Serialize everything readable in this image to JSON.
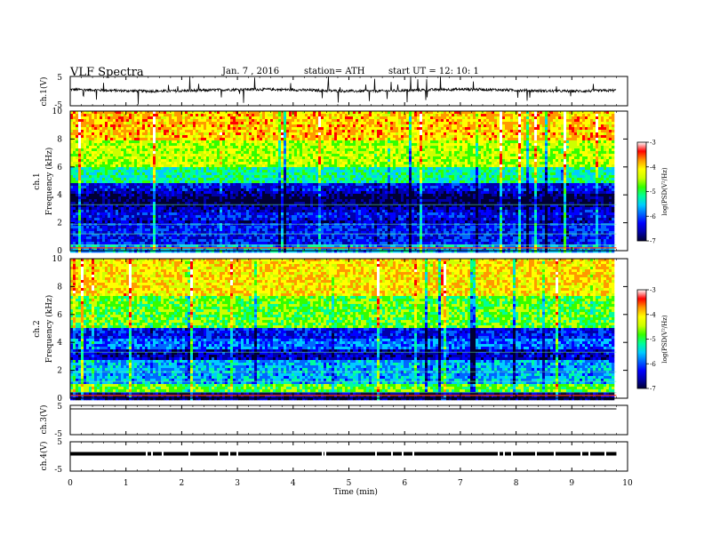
{
  "header": {
    "title": "VLF Spectra",
    "date": "Jan. 7 , 2016",
    "station": "station= ATH",
    "start": "start UT = 12: 10: 1"
  },
  "colors": {
    "spectrum": [
      "#000033",
      "#0000aa",
      "#0000ff",
      "#0066ff",
      "#00ccff",
      "#00ff99",
      "#33ff00",
      "#ccff00",
      "#ffff00",
      "#ff9900",
      "#ff0000",
      "#ffffff"
    ]
  },
  "chart_data": [
    {
      "type": "line",
      "panel": "ch1-waveform",
      "ylabel": "ch.1(V)",
      "ylim": [
        -5,
        5
      ],
      "yticks": [
        "5",
        "-5"
      ],
      "baseline": 0.3
    },
    {
      "type": "heatmap",
      "panel": "ch1-spectrogram",
      "ylabel": "Frequency (kHz)",
      "channel_label": "ch.1",
      "ylim": [
        0,
        10
      ],
      "yticks": [
        "0",
        "2",
        "4",
        "6",
        "8",
        "10"
      ],
      "colorbar": {
        "label": "log(PSD(V²/Hz)",
        "range": [
          -7,
          -3
        ],
        "ticks": [
          "-7",
          "-6",
          "-5",
          "-4",
          "-3"
        ]
      }
    },
    {
      "type": "heatmap",
      "panel": "ch2-spectrogram",
      "ylabel": "Frequency (kHz)",
      "channel_label": "ch.2",
      "ylim": [
        0,
        10
      ],
      "yticks": [
        "0",
        "2",
        "4",
        "6",
        "8",
        "10"
      ],
      "colorbar": {
        "label": "log(PSD(V²/Hz)",
        "range": [
          -7,
          -3
        ],
        "ticks": [
          "-7",
          "-6",
          "-5",
          "-4",
          "-3"
        ]
      }
    },
    {
      "type": "line",
      "panel": "ch3-waveform",
      "ylabel": "ch.3(V)",
      "ylim": [
        -5,
        5
      ],
      "yticks": [
        "5",
        "-5"
      ],
      "baseline": 5
    },
    {
      "type": "line",
      "panel": "ch4-waveform",
      "ylabel": "ch.4(V)",
      "ylim": [
        -5,
        5
      ],
      "yticks": [
        "5",
        "-5"
      ],
      "baseline": 0
    }
  ],
  "xaxis": {
    "xlabel": "Time (min)",
    "xlim": [
      0,
      10
    ],
    "ticks": [
      "0",
      "1",
      "2",
      "3",
      "4",
      "5",
      "6",
      "7",
      "8",
      "9",
      "10"
    ],
    "data_end": 9.8
  }
}
